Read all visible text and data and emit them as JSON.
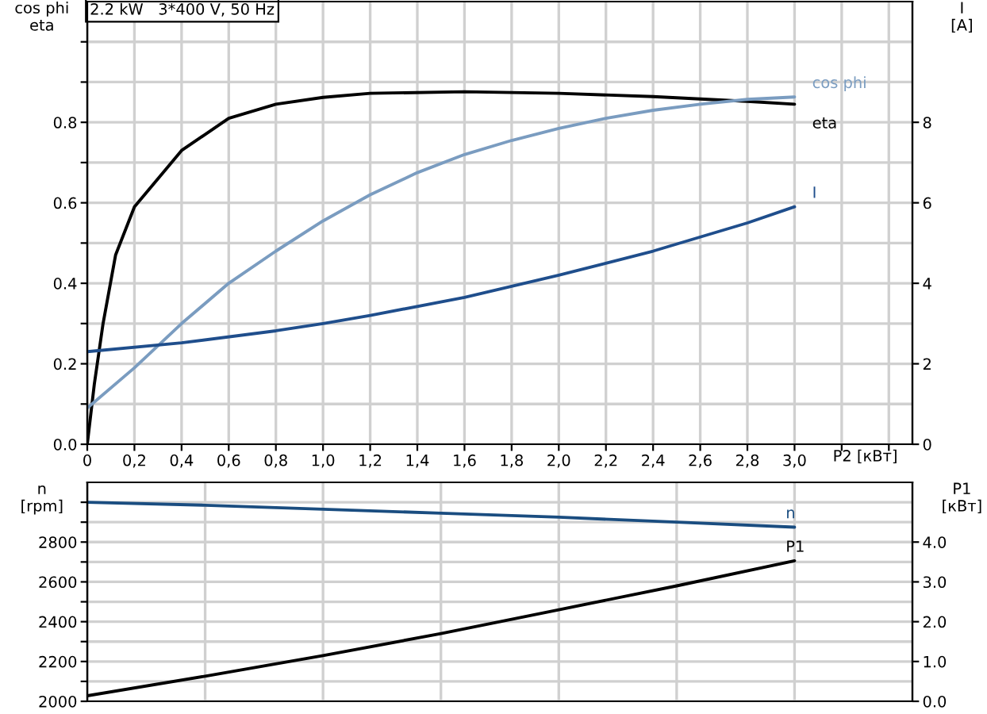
{
  "chart_data": [
    {
      "type": "line",
      "title": "2.2 kW   3*400 V, 50 Hz",
      "xlabel": "P2 [кВт]",
      "ylabel": "cos phi\neta",
      "y2label": "I\n[A]",
      "xlim": [
        0,
        3.5
      ],
      "ylim": [
        0,
        1.1
      ],
      "y2lim": [
        0,
        11
      ],
      "grid": true,
      "legend": false,
      "marker": "none",
      "line_style": "solid",
      "xticks": [
        0,
        {
          "value": 0.2,
          "label": "0,2"
        },
        {
          "value": 0.4,
          "label": "0,4"
        },
        {
          "value": 0.6,
          "label": "0,6"
        },
        {
          "value": 0.8,
          "label": "0,8"
        },
        {
          "value": 1.0,
          "label": "1,0"
        },
        {
          "value": 1.2,
          "label": "1,2"
        },
        {
          "value": 1.4,
          "label": "1,4"
        },
        {
          "value": 1.6,
          "label": "1,6"
        },
        {
          "value": 1.8,
          "label": "1,8"
        },
        {
          "value": 2.0,
          "label": "2,0"
        },
        {
          "value": 2.2,
          "label": "2,2"
        },
        {
          "value": 2.4,
          "label": "2,4"
        },
        {
          "value": 2.6,
          "label": "2,6"
        },
        {
          "value": 2.8,
          "label": "2,8"
        },
        {
          "value": 3.0,
          "label": "3,0"
        },
        {
          "value": 3.2,
          "label": null
        },
        {
          "value": 3.4,
          "label": null
        }
      ],
      "yticks": [
        {
          "value": 0.0,
          "label": "0.0"
        },
        {
          "value": 0.1,
          "label": null
        },
        {
          "value": 0.2,
          "label": "0.2"
        },
        {
          "value": 0.3,
          "label": null
        },
        {
          "value": 0.4,
          "label": "0.4"
        },
        {
          "value": 0.5,
          "label": null
        },
        {
          "value": 0.6,
          "label": "0.6"
        },
        {
          "value": 0.7,
          "label": null
        },
        {
          "value": 0.8,
          "label": "0.8"
        },
        {
          "value": 0.9,
          "label": null
        },
        {
          "value": 1.0,
          "label": null
        }
      ],
      "y2ticks": [
        0,
        2,
        4,
        6,
        8
      ],
      "series": [
        {
          "name": "eta",
          "color": "#000000",
          "x": [
            0,
            0.03,
            0.067,
            0.12,
            0.2,
            0.3,
            0.4,
            0.6,
            0.8,
            1.0,
            1.2,
            1.6,
            2.0,
            2.4,
            2.8,
            3.0
          ],
          "values": [
            0,
            0.15,
            0.3,
            0.47,
            0.59,
            0.66,
            0.73,
            0.81,
            0.845,
            0.862,
            0.872,
            0.876,
            0.872,
            0.864,
            0.852,
            0.845
          ]
        },
        {
          "name": "cos phi",
          "color": "#7a9cc0",
          "x": [
            0,
            0.2,
            0.4,
            0.6,
            0.8,
            1.0,
            1.2,
            1.4,
            1.6,
            1.8,
            2.0,
            2.2,
            2.4,
            2.6,
            2.8,
            3.0
          ],
          "values": [
            0.09,
            0.19,
            0.3,
            0.4,
            0.48,
            0.555,
            0.62,
            0.675,
            0.72,
            0.755,
            0.785,
            0.81,
            0.83,
            0.845,
            0.857,
            0.863
          ]
        },
        {
          "name": "I",
          "color": "#1f4e8c",
          "axis": "y2",
          "x": [
            0,
            0.4,
            0.8,
            1.0,
            1.2,
            1.6,
            2.0,
            2.4,
            2.8,
            3.0
          ],
          "values": [
            2.3,
            2.52,
            2.82,
            3.0,
            3.2,
            3.65,
            4.2,
            4.8,
            5.5,
            5.9
          ]
        }
      ]
    },
    {
      "type": "line",
      "ylabel": "n\n[rpm]",
      "y2label": "P1\n[кВт]",
      "xlim": [
        0,
        3.5
      ],
      "ylim": [
        2000,
        3100
      ],
      "y2lim": [
        0,
        5.5
      ],
      "grid": true,
      "legend": false,
      "marker": "none",
      "line_style": "solid",
      "tick_labels": "y",
      "xticks": [
        0,
        0.5,
        1.0,
        1.5,
        2.0,
        2.5,
        3.0
      ],
      "yticks": [
        2000,
        {
          "value": 2100,
          "label": null
        },
        2200,
        {
          "value": 2300,
          "label": null
        },
        2400,
        {
          "value": 2500,
          "label": null
        },
        2600,
        {
          "value": 2700,
          "label": null
        },
        2800,
        {
          "value": 2900,
          "label": null
        },
        {
          "value": 3000,
          "label": null
        }
      ],
      "y2ticks": [
        {
          "value": 0,
          "label": "0.0"
        },
        {
          "value": 1,
          "label": "1.0"
        },
        {
          "value": 2,
          "label": "2.0"
        },
        {
          "value": 3,
          "label": "3.0"
        },
        {
          "value": 4,
          "label": "4.0"
        }
      ],
      "series": [
        {
          "name": "n",
          "color": "#1a4d80",
          "x": [
            0,
            0.5,
            1.0,
            1.5,
            2.0,
            2.5,
            3.0
          ],
          "values": [
            3000,
            2985,
            2965,
            2945,
            2925,
            2900,
            2875
          ]
        },
        {
          "name": "P1",
          "color": "#000000",
          "axis": "y2",
          "x": [
            0,
            0.5,
            1.0,
            1.5,
            2.0,
            2.5,
            3.0
          ],
          "values": [
            0.14,
            0.63,
            1.15,
            1.7,
            2.3,
            2.9,
            3.53
          ]
        }
      ]
    }
  ]
}
